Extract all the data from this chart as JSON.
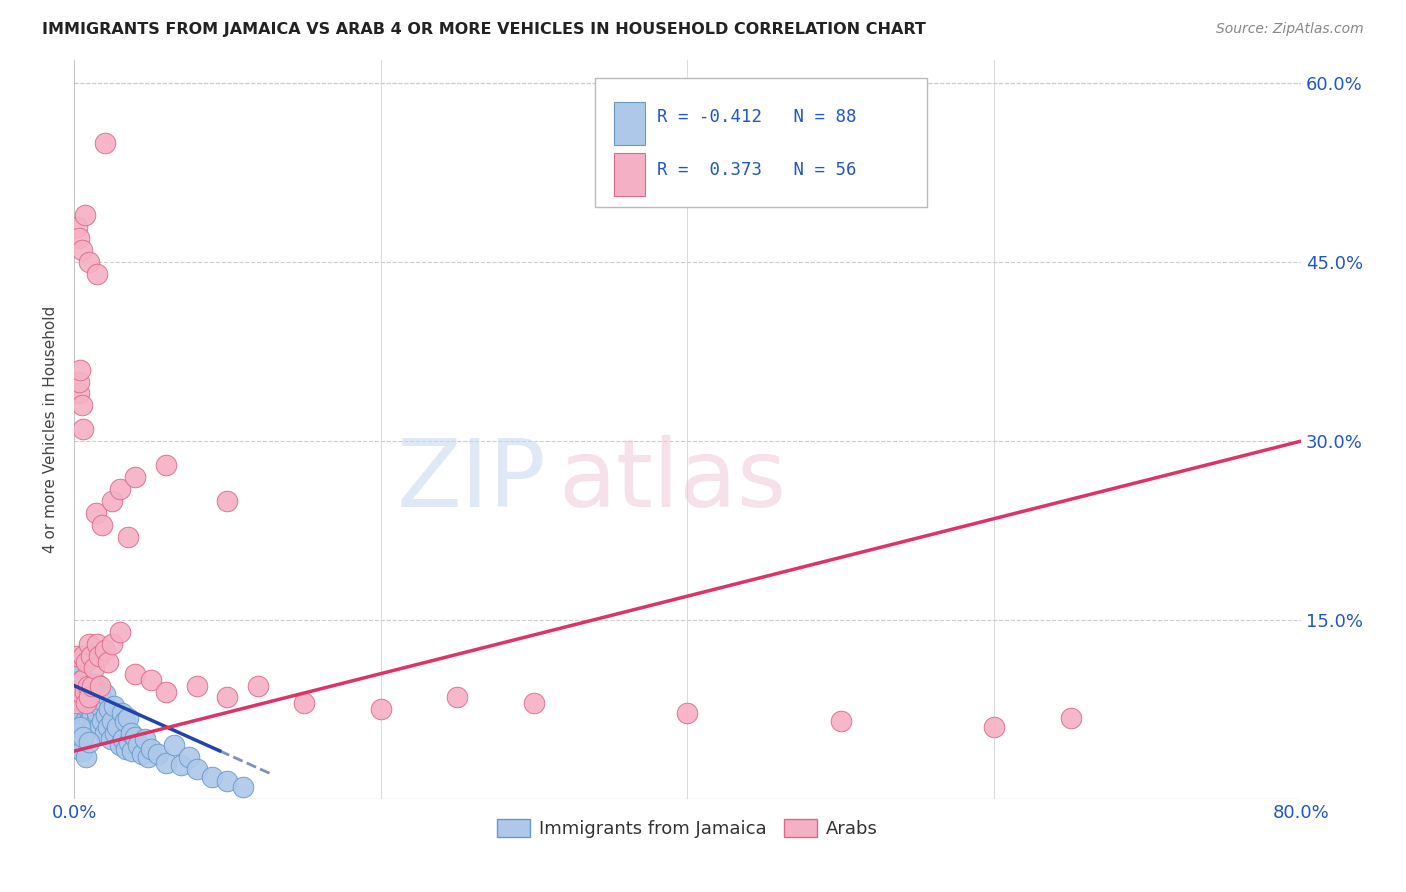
{
  "title": "IMMIGRANTS FROM JAMAICA VS ARAB 4 OR MORE VEHICLES IN HOUSEHOLD CORRELATION CHART",
  "source": "Source: ZipAtlas.com",
  "ylabel": "4 or more Vehicles in Household",
  "x_label_jamaica": "Immigrants from Jamaica",
  "x_label_arabs": "Arabs",
  "xlim": [
    0.0,
    0.8
  ],
  "ylim": [
    0.0,
    0.62
  ],
  "grid_color": "#cccccc",
  "background_color": "#ffffff",
  "jamaica_color": "#adc8e8",
  "jamaica_edge_color": "#6699cc",
  "arab_color": "#f4b0c4",
  "arab_edge_color": "#e06888",
  "jamaica_R": -0.412,
  "jamaica_N": 88,
  "arab_R": 0.373,
  "arab_N": 56,
  "trend_jamaica_color": "#2244aa",
  "trend_arab_color": "#dd3366",
  "watermark_zip_color": "#c5d8f0",
  "watermark_atlas_color": "#f0c8d8",
  "legend_R1": "R = -0.412",
  "legend_N1": "N = 88",
  "legend_R2": "R =  0.373",
  "legend_N2": "N = 56",
  "jamaica_scatter_x": [
    0.001,
    0.001,
    0.002,
    0.002,
    0.002,
    0.002,
    0.003,
    0.003,
    0.003,
    0.003,
    0.004,
    0.004,
    0.004,
    0.005,
    0.005,
    0.005,
    0.005,
    0.006,
    0.006,
    0.006,
    0.007,
    0.007,
    0.007,
    0.008,
    0.008,
    0.008,
    0.009,
    0.009,
    0.01,
    0.01,
    0.01,
    0.011,
    0.011,
    0.012,
    0.012,
    0.013,
    0.013,
    0.014,
    0.015,
    0.015,
    0.016,
    0.016,
    0.017,
    0.018,
    0.018,
    0.019,
    0.02,
    0.02,
    0.021,
    0.022,
    0.023,
    0.024,
    0.025,
    0.026,
    0.027,
    0.028,
    0.03,
    0.031,
    0.032,
    0.033,
    0.034,
    0.035,
    0.036,
    0.037,
    0.038,
    0.04,
    0.042,
    0.044,
    0.046,
    0.048,
    0.05,
    0.055,
    0.06,
    0.065,
    0.07,
    0.075,
    0.08,
    0.09,
    0.1,
    0.11,
    0.001,
    0.002,
    0.003,
    0.004,
    0.005,
    0.006,
    0.008,
    0.01
  ],
  "jamaica_scatter_y": [
    0.085,
    0.095,
    0.075,
    0.09,
    0.1,
    0.11,
    0.08,
    0.095,
    0.07,
    0.105,
    0.065,
    0.092,
    0.082,
    0.075,
    0.1,
    0.06,
    0.09,
    0.085,
    0.095,
    0.07,
    0.065,
    0.092,
    0.082,
    0.078,
    0.098,
    0.062,
    0.088,
    0.08,
    0.095,
    0.065,
    0.088,
    0.092,
    0.078,
    0.07,
    0.095,
    0.062,
    0.085,
    0.08,
    0.072,
    0.096,
    0.06,
    0.085,
    0.09,
    0.075,
    0.065,
    0.082,
    0.055,
    0.088,
    0.07,
    0.06,
    0.075,
    0.05,
    0.065,
    0.078,
    0.055,
    0.06,
    0.045,
    0.072,
    0.05,
    0.065,
    0.042,
    0.068,
    0.048,
    0.055,
    0.04,
    0.052,
    0.045,
    0.038,
    0.05,
    0.035,
    0.042,
    0.038,
    0.03,
    0.045,
    0.028,
    0.035,
    0.025,
    0.018,
    0.015,
    0.01,
    0.05,
    0.055,
    0.045,
    0.06,
    0.04,
    0.052,
    0.035,
    0.048
  ],
  "arab_scatter_x": [
    0.001,
    0.002,
    0.002,
    0.003,
    0.003,
    0.004,
    0.004,
    0.005,
    0.005,
    0.006,
    0.006,
    0.007,
    0.008,
    0.008,
    0.009,
    0.01,
    0.01,
    0.011,
    0.012,
    0.013,
    0.014,
    0.015,
    0.016,
    0.017,
    0.018,
    0.02,
    0.022,
    0.025,
    0.03,
    0.035,
    0.04,
    0.05,
    0.06,
    0.08,
    0.1,
    0.12,
    0.15,
    0.2,
    0.25,
    0.3,
    0.4,
    0.5,
    0.6,
    0.65,
    0.002,
    0.003,
    0.005,
    0.007,
    0.01,
    0.015,
    0.02,
    0.025,
    0.03,
    0.04,
    0.06,
    0.1
  ],
  "arab_scatter_y": [
    0.08,
    0.095,
    0.12,
    0.34,
    0.35,
    0.36,
    0.09,
    0.33,
    0.1,
    0.31,
    0.12,
    0.09,
    0.08,
    0.115,
    0.095,
    0.13,
    0.085,
    0.12,
    0.095,
    0.11,
    0.24,
    0.13,
    0.12,
    0.095,
    0.23,
    0.125,
    0.115,
    0.13,
    0.14,
    0.22,
    0.105,
    0.1,
    0.09,
    0.095,
    0.085,
    0.095,
    0.08,
    0.075,
    0.085,
    0.08,
    0.072,
    0.065,
    0.06,
    0.068,
    0.48,
    0.47,
    0.46,
    0.49,
    0.45,
    0.44,
    0.55,
    0.25,
    0.26,
    0.27,
    0.28,
    0.25
  ],
  "jam_trend_x0": 0.0,
  "jam_trend_x1": 0.13,
  "jam_trend_y0": 0.095,
  "jam_trend_y1": 0.02,
  "jam_trend_solid_end": 0.095,
  "arab_trend_x0": 0.0,
  "arab_trend_x1": 0.8,
  "arab_trend_y0": 0.04,
  "arab_trend_y1": 0.3
}
